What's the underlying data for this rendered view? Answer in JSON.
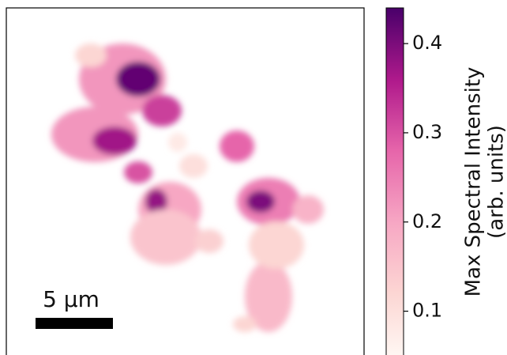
{
  "chart_data": {
    "type": "heatmap",
    "colorbar_label": [
      "Max Spectral Intensity",
      "(arb. units)"
    ],
    "clim": [
      0.05,
      0.44
    ],
    "cticks": [
      0.1,
      0.2,
      0.3,
      0.4
    ],
    "colormap": "RdPu",
    "scale_bar": "5 μm",
    "values": [
      0.22,
      0.42,
      0.22,
      0.37,
      0.32,
      0.3,
      0.2,
      0.38,
      0.15,
      0.28,
      0.25,
      0.4,
      0.18,
      0.17,
      0.12,
      0.1,
      0.12,
      0.12,
      0.13,
      0.08
    ]
  }
}
